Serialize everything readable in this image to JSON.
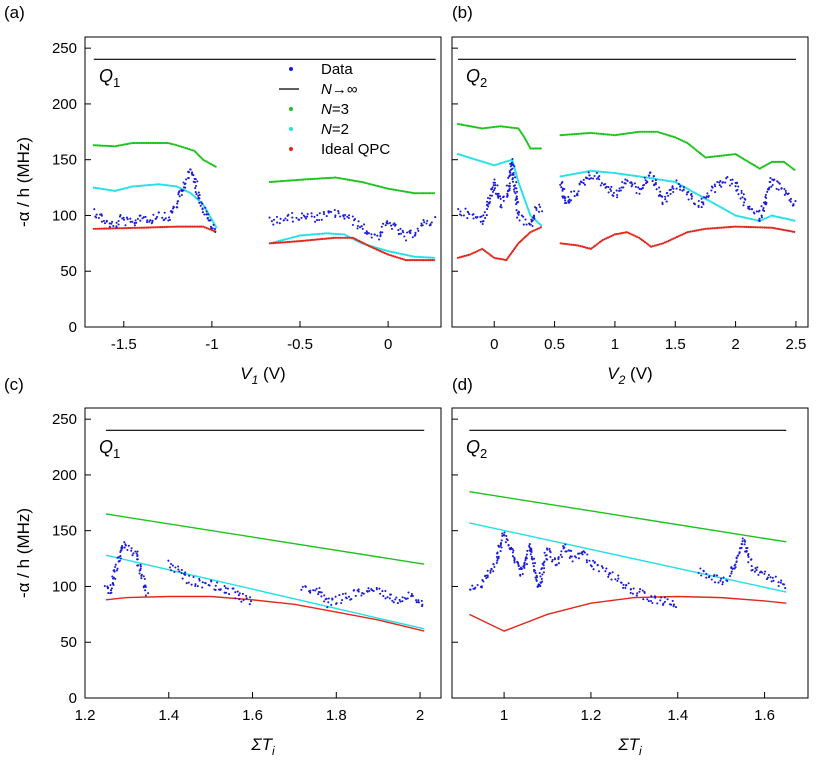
{
  "colors": {
    "data": "#1a1adb",
    "ninf": "#000000",
    "n3": "#1ec21e",
    "n2": "#22e0e6",
    "ideal": "#e0281e"
  },
  "legend": [
    {
      "key": "data",
      "text": "Data",
      "italic": "",
      "suffix": ""
    },
    {
      "key": "ninf",
      "text": "",
      "italic": "N",
      "suffix": "→∞"
    },
    {
      "key": "n3",
      "text": "",
      "italic": "N",
      "suffix": "=3"
    },
    {
      "key": "n2",
      "text": "",
      "italic": "N",
      "suffix": "=2"
    },
    {
      "key": "ideal",
      "text": "Ideal QPC",
      "italic": "",
      "suffix": ""
    }
  ],
  "chart_data": [
    {
      "panel": "(a)",
      "qlabel": "Q",
      "qsub": "1",
      "type": "scatter",
      "xlabel": "V",
      "xsub": "1",
      "xunit": " (V)",
      "ylabel": "-α / h (MHz)",
      "xlim": [
        -1.72,
        0.3
      ],
      "ylim": [
        0,
        260
      ],
      "xticks": [
        -1.5,
        -1,
        -0.5,
        0
      ],
      "xticklabels": [
        "-1.5",
        "-1",
        "-0.5",
        "0"
      ],
      "yticks": [
        0,
        50,
        100,
        150,
        200,
        250
      ],
      "yticklabels": [
        "0",
        "50",
        "100",
        "150",
        "200",
        "250"
      ],
      "ninf": {
        "x": [
          -1.67,
          0.27
        ],
        "y": [
          240,
          240
        ]
      },
      "n3": [
        {
          "x": [
            -1.67,
            -1.55,
            -1.45,
            -1.25,
            -1.2,
            -1.1,
            -1.05,
            -0.97
          ],
          "y": [
            163,
            162,
            165,
            165,
            163,
            158,
            150,
            143
          ]
        },
        {
          "x": [
            -0.67,
            -0.5,
            -0.3,
            -0.15,
            0,
            0.15,
            0.27
          ],
          "y": [
            130,
            132,
            134,
            130,
            124,
            120,
            120
          ]
        }
      ],
      "n2": [
        {
          "x": [
            -1.67,
            -1.55,
            -1.45,
            -1.3,
            -1.2,
            -1.12,
            -1.05,
            -0.97
          ],
          "y": [
            125,
            122,
            126,
            128,
            126,
            120,
            110,
            88
          ]
        },
        {
          "x": [
            -0.67,
            -0.5,
            -0.35,
            -0.25,
            -0.15,
            0,
            0.15,
            0.27
          ],
          "y": [
            75,
            82,
            84,
            83,
            75,
            68,
            63,
            62
          ]
        }
      ],
      "ideal": [
        {
          "x": [
            -1.67,
            -1.4,
            -1.2,
            -1.05,
            -0.97
          ],
          "y": [
            88,
            89,
            90,
            90,
            85
          ]
        },
        {
          "x": [
            -0.67,
            -0.5,
            -0.3,
            -0.2,
            -0.1,
            0,
            0.1,
            0.27
          ],
          "y": [
            75,
            77,
            80,
            80,
            72,
            65,
            60,
            60
          ]
        }
      ],
      "data": [
        {
          "x": [
            -1.67,
            -1.6,
            -1.55,
            -1.52,
            -1.45,
            -1.4,
            -1.35,
            -1.3,
            -1.25,
            -1.2,
            -1.15,
            -1.12,
            -1.1,
            -1.07,
            -1.03,
            -0.98
          ],
          "y": [
            104,
            94,
            90,
            97,
            92,
            100,
            95,
            102,
            97,
            110,
            130,
            140,
            132,
            115,
            100,
            85
          ]
        },
        {
          "x": [
            -0.67,
            -0.6,
            -0.5,
            -0.4,
            -0.3,
            -0.25,
            -0.2,
            -0.15,
            -0.1,
            -0.05,
            0,
            0.05,
            0.1,
            0.15,
            0.2,
            0.27
          ],
          "y": [
            95,
            97,
            99,
            98,
            102,
            100,
            95,
            90,
            83,
            82,
            94,
            87,
            80,
            85,
            92,
            96
          ]
        }
      ]
    },
    {
      "panel": "(b)",
      "qlabel": "Q",
      "qsub": "2",
      "type": "scatter",
      "xlabel": "V",
      "xsub": "2",
      "xunit": " (V)",
      "ylabel": "",
      "xlim": [
        -0.35,
        2.6
      ],
      "ylim": [
        0,
        260
      ],
      "xticks": [
        0,
        0.5,
        1,
        1.5,
        2,
        2.5
      ],
      "xticklabels": [
        "0",
        "0.5",
        "1",
        "1.5",
        "2",
        "2.5"
      ],
      "yticks": [
        0,
        50,
        100,
        150,
        200,
        250
      ],
      "yticklabels": [],
      "ninf": {
        "x": [
          -0.3,
          2.5
        ],
        "y": [
          240,
          240
        ]
      },
      "n3": [
        {
          "x": [
            -0.3,
            -0.1,
            0.05,
            0.2,
            0.25,
            0.3,
            0.4
          ],
          "y": [
            182,
            178,
            180,
            178,
            170,
            160,
            160
          ]
        },
        {
          "x": [
            0.55,
            0.8,
            1.0,
            1.2,
            1.35,
            1.5,
            1.6,
            1.75,
            2.0,
            2.2,
            2.3,
            2.4,
            2.5
          ],
          "y": [
            172,
            174,
            172,
            175,
            175,
            170,
            165,
            152,
            155,
            142,
            148,
            148,
            140
          ]
        }
      ],
      "n2": [
        {
          "x": [
            -0.3,
            -0.15,
            0,
            0.15,
            0.2,
            0.3,
            0.4
          ],
          "y": [
            155,
            150,
            145,
            150,
            130,
            100,
            90
          ]
        },
        {
          "x": [
            0.55,
            0.8,
            1.0,
            1.2,
            1.5,
            1.75,
            2.0,
            2.2,
            2.3,
            2.5
          ],
          "y": [
            135,
            140,
            138,
            135,
            130,
            115,
            100,
            95,
            100,
            95
          ]
        }
      ],
      "ideal": [
        {
          "x": [
            -0.3,
            -0.2,
            -0.1,
            0,
            0.1,
            0.2,
            0.3,
            0.4
          ],
          "y": [
            62,
            65,
            70,
            62,
            60,
            75,
            85,
            90
          ]
        },
        {
          "x": [
            0.55,
            0.7,
            0.8,
            0.9,
            1.0,
            1.1,
            1.2,
            1.3,
            1.4,
            1.5,
            1.6,
            1.75,
            2.0,
            2.3,
            2.5
          ],
          "y": [
            75,
            73,
            70,
            78,
            83,
            85,
            80,
            72,
            75,
            80,
            85,
            88,
            90,
            89,
            85
          ]
        }
      ],
      "data": [
        {
          "x": [
            -0.3,
            -0.2,
            -0.1,
            0,
            0.05,
            0.1,
            0.15,
            0.2,
            0.25,
            0.3,
            0.35,
            0.4
          ],
          "y": [
            105,
            100,
            95,
            130,
            110,
            115,
            148,
            100,
            95,
            90,
            105,
            108
          ]
        },
        {
          "x": [
            0.55,
            0.6,
            0.7,
            0.8,
            0.9,
            1.0,
            1.1,
            1.2,
            1.3,
            1.4,
            1.5,
            1.6,
            1.7,
            1.8,
            1.9,
            2.0,
            2.1,
            2.2,
            2.3,
            2.4,
            2.5
          ],
          "y": [
            130,
            110,
            125,
            138,
            130,
            118,
            132,
            122,
            137,
            112,
            128,
            120,
            108,
            122,
            132,
            128,
            108,
            98,
            132,
            120,
            108
          ]
        }
      ]
    },
    {
      "panel": "(c)",
      "qlabel": "Q",
      "qsub": "1",
      "type": "scatter",
      "xlabel": "ΣT",
      "xsub": "i",
      "xunit": "",
      "ylabel": "-α / h (MHz)",
      "xlim": [
        1.2,
        2.05
      ],
      "ylim": [
        0,
        260
      ],
      "xticks": [
        1.2,
        1.4,
        1.6,
        1.8,
        2.0
      ],
      "xticklabels": [
        "1.2",
        "1.4",
        "1.6",
        "1.8",
        "2"
      ],
      "yticks": [
        0,
        50,
        100,
        150,
        200,
        250
      ],
      "yticklabels": [
        "0",
        "50",
        "100",
        "150",
        "200",
        "250"
      ],
      "ninf": {
        "x": [
          1.25,
          2.01
        ],
        "y": [
          240,
          240
        ]
      },
      "n3": [
        {
          "x": [
            1.25,
            2.01
          ],
          "y": [
            165,
            120
          ]
        }
      ],
      "n2": [
        {
          "x": [
            1.25,
            2.01
          ],
          "y": [
            128,
            62
          ]
        }
      ],
      "ideal": [
        {
          "x": [
            1.25,
            1.3,
            1.4,
            1.5,
            1.6,
            1.7,
            1.8,
            1.9,
            2.01
          ],
          "y": [
            88,
            90,
            91,
            91,
            88,
            84,
            77,
            70,
            60
          ]
        }
      ],
      "data": [
        {
          "x": [
            1.25,
            1.26,
            1.27,
            1.28,
            1.29,
            1.3,
            1.32,
            1.35
          ],
          "y": [
            102,
            95,
            110,
            125,
            138,
            135,
            130,
            92
          ]
        },
        {
          "x": [
            1.4,
            1.45,
            1.5,
            1.55,
            1.6
          ],
          "y": [
            120,
            105,
            102,
            95,
            85
          ]
        },
        {
          "x": [
            1.72,
            1.76,
            1.78,
            1.82,
            1.86,
            1.9,
            1.94,
            1.98,
            2.01
          ],
          "y": [
            100,
            95,
            85,
            90,
            95,
            97,
            88,
            92,
            82
          ]
        }
      ]
    },
    {
      "panel": "(d)",
      "qlabel": "Q",
      "qsub": "2",
      "type": "scatter",
      "xlabel": "ΣT",
      "xsub": "i",
      "xunit": "",
      "ylabel": "",
      "xlim": [
        0.88,
        1.7
      ],
      "ylim": [
        0,
        260
      ],
      "xticks": [
        1.0,
        1.2,
        1.4,
        1.6
      ],
      "xticklabels": [
        "1",
        "1.2",
        "1.4",
        "1.6"
      ],
      "yticks": [
        0,
        50,
        100,
        150,
        200,
        250
      ],
      "yticklabels": [],
      "ninf": {
        "x": [
          0.92,
          1.65
        ],
        "y": [
          240,
          240
        ]
      },
      "n3": [
        {
          "x": [
            0.92,
            1.65
          ],
          "y": [
            185,
            140
          ]
        }
      ],
      "n2": [
        {
          "x": [
            0.92,
            1.65
          ],
          "y": [
            157,
            95
          ]
        }
      ],
      "ideal": [
        {
          "x": [
            0.92,
            1.0,
            1.1,
            1.2,
            1.3,
            1.4,
            1.5,
            1.6,
            1.65
          ],
          "y": [
            75,
            60,
            75,
            85,
            90,
            91,
            90,
            87,
            85
          ]
        }
      ],
      "data": [
        {
          "x": [
            0.92,
            0.95,
            0.98,
            1.0,
            1.02,
            1.04,
            1.06,
            1.08,
            1.1,
            1.12,
            1.14,
            1.16,
            1.18,
            1.2,
            1.22,
            1.25,
            1.3,
            1.35,
            1.4
          ],
          "y": [
            100,
            102,
            120,
            148,
            130,
            110,
            138,
            100,
            132,
            122,
            136,
            126,
            130,
            120,
            115,
            110,
            95,
            88,
            85
          ]
        },
        {
          "x": [
            1.45,
            1.5,
            1.52,
            1.55,
            1.57,
            1.6,
            1.63,
            1.65
          ],
          "y": [
            115,
            105,
            110,
            140,
            118,
            110,
            105,
            100
          ]
        }
      ]
    }
  ]
}
